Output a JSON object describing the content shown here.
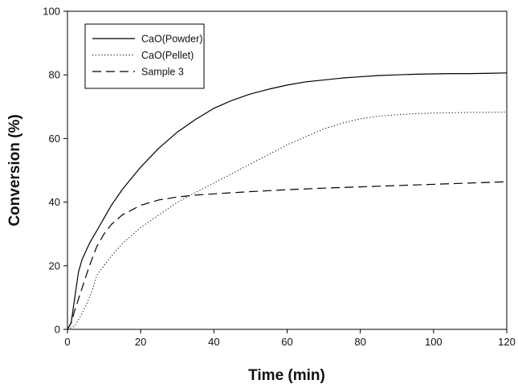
{
  "chart_data": {
    "type": "line",
    "title": "",
    "xlabel": "Time (min)",
    "ylabel": "Conversion (%)",
    "xlim": [
      0,
      120
    ],
    "ylim": [
      0,
      100
    ],
    "xticks": [
      0,
      20,
      40,
      60,
      80,
      100,
      120
    ],
    "yticks": [
      0,
      20,
      40,
      60,
      80,
      100
    ],
    "grid": false,
    "legend_position": "top-left",
    "series": [
      {
        "name": "CaO(Powder)",
        "style": "solid",
        "color": "#000000",
        "x": [
          0,
          1,
          2,
          3,
          4,
          6,
          8,
          10,
          12,
          15,
          20,
          25,
          30,
          35,
          40,
          45,
          50,
          55,
          60,
          65,
          70,
          75,
          80,
          85,
          90,
          95,
          100,
          105,
          110,
          115,
          120
        ],
        "y": [
          0,
          2,
          10,
          18,
          22,
          27,
          31,
          35,
          39,
          44,
          51,
          57,
          62,
          66,
          69.5,
          72,
          74,
          75.5,
          76.8,
          77.8,
          78.4,
          79,
          79.4,
          79.8,
          80,
          80.2,
          80.3,
          80.4,
          80.4,
          80.5,
          80.6
        ]
      },
      {
        "name": "CaO(Pellet)",
        "style": "dotted",
        "color": "#000000",
        "x": [
          0,
          2,
          4,
          6,
          7,
          8,
          10,
          12,
          15,
          20,
          25,
          30,
          35,
          40,
          45,
          50,
          55,
          60,
          65,
          70,
          75,
          80,
          85,
          90,
          95,
          100,
          105,
          110,
          115,
          120
        ],
        "y": [
          0,
          1,
          5,
          10,
          13,
          17,
          20,
          23,
          27,
          32,
          36,
          40,
          43,
          46,
          49,
          52,
          55,
          58,
          60.5,
          63,
          64.8,
          66.2,
          67,
          67.5,
          67.8,
          68,
          68.1,
          68.2,
          68.2,
          68.3
        ]
      },
      {
        "name": "Sample 3",
        "style": "dashed",
        "color": "#000000",
        "x": [
          0,
          1,
          2,
          4,
          6,
          8,
          10,
          12,
          15,
          20,
          25,
          30,
          35,
          40,
          50,
          60,
          70,
          80,
          90,
          100,
          110,
          120
        ],
        "y": [
          0,
          2,
          6,
          13,
          20,
          26,
          30,
          33,
          36,
          39,
          40.7,
          41.6,
          42.2,
          42.6,
          43.3,
          43.9,
          44.4,
          44.8,
          45.2,
          45.6,
          46,
          46.4
        ]
      }
    ]
  }
}
